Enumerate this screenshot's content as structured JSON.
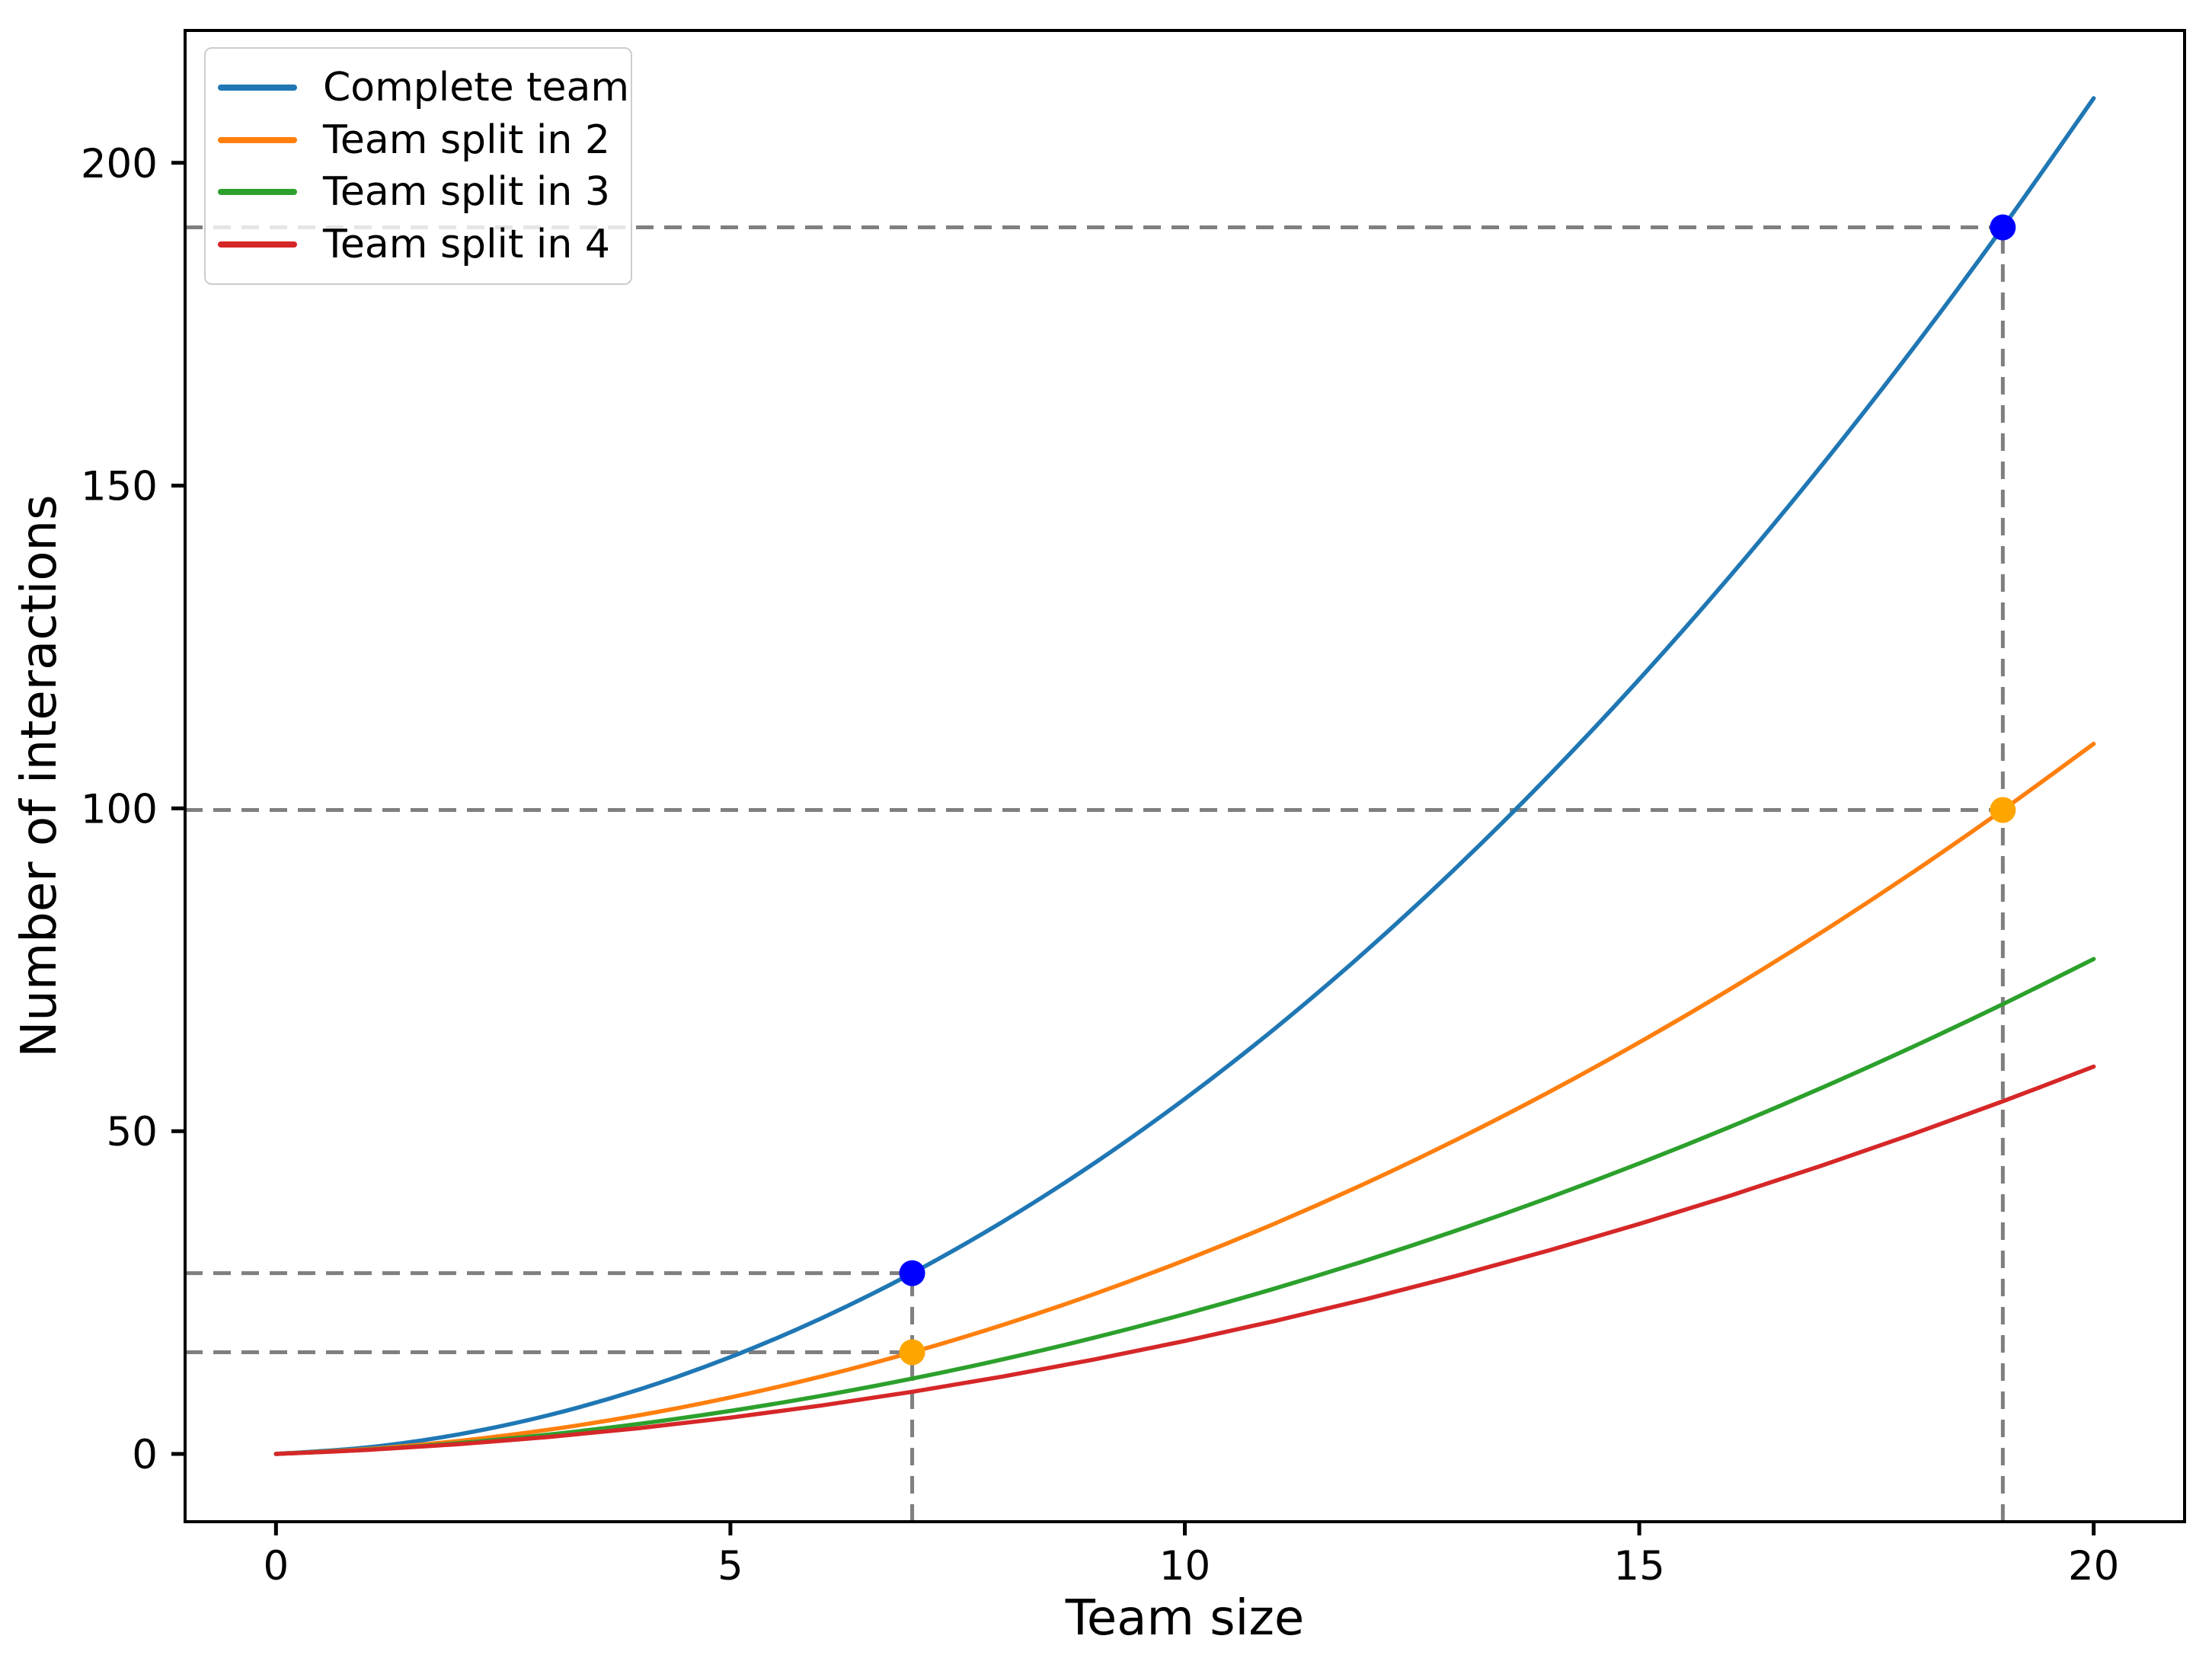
{
  "chart_data": {
    "type": "line",
    "title": "",
    "xlabel": "Team size",
    "ylabel": "Number of interactions",
    "xlim": [
      -1,
      21
    ],
    "ylim": [
      -10.5,
      220.5
    ],
    "xticks": [
      0,
      5,
      10,
      15,
      20
    ],
    "yticks": [
      0,
      50,
      100,
      150,
      200
    ],
    "grid": false,
    "legend_position": "upper left",
    "x": [
      0,
      1,
      2,
      3,
      4,
      5,
      6,
      7,
      8,
      9,
      10,
      11,
      12,
      13,
      14,
      15,
      16,
      17,
      18,
      19,
      20
    ],
    "series": [
      {
        "name": "Complete team",
        "color": "#1f77b4",
        "values": [
          0,
          1,
          3,
          6,
          10,
          15,
          21,
          28,
          36,
          45,
          55,
          66,
          78,
          91,
          105,
          120,
          136,
          153,
          171,
          190,
          210
        ]
      },
      {
        "name": "Team split in 2",
        "color": "#ff7f0e",
        "values": [
          0,
          0.75,
          2,
          3.75,
          6,
          8.75,
          12,
          15.75,
          20,
          24.75,
          30,
          35.75,
          42,
          48.75,
          56,
          63.75,
          72,
          80.75,
          90,
          99.75,
          110
        ]
      },
      {
        "name": "Team split in 3",
        "color": "#2ca02c",
        "values": [
          0,
          0.667,
          1.667,
          3,
          4.667,
          6.667,
          9,
          11.667,
          14.667,
          18,
          21.667,
          25.667,
          30,
          34.667,
          39.667,
          45,
          50.667,
          56.667,
          63,
          69.667,
          76.667
        ]
      },
      {
        "name": "Team split in 4",
        "color": "#d62728",
        "values": [
          0,
          0.625,
          1.5,
          2.625,
          4,
          5.625,
          7.5,
          9.625,
          12,
          14.625,
          17.5,
          20.625,
          24,
          27.625,
          31.5,
          35.625,
          40,
          44.625,
          49.5,
          54.625,
          60
        ]
      }
    ],
    "markers": [
      {
        "x": 7,
        "y": 28,
        "color": "#0000ff"
      },
      {
        "x": 19,
        "y": 190,
        "color": "#0000ff"
      },
      {
        "x": 7,
        "y": 15.75,
        "color": "#ffa500"
      },
      {
        "x": 19,
        "y": 99.75,
        "color": "#ffa500"
      }
    ],
    "guides": {
      "color": "#7f7f7f",
      "vlines": [
        {
          "x": 7,
          "y_top": 28
        },
        {
          "x": 19,
          "y_top": 190
        }
      ],
      "hlines": [
        {
          "y": 28,
          "x_right": 7
        },
        {
          "y": 15.75,
          "x_right": 7
        },
        {
          "y": 190,
          "x_right": 19
        },
        {
          "y": 99.75,
          "x_right": 19
        }
      ]
    }
  }
}
